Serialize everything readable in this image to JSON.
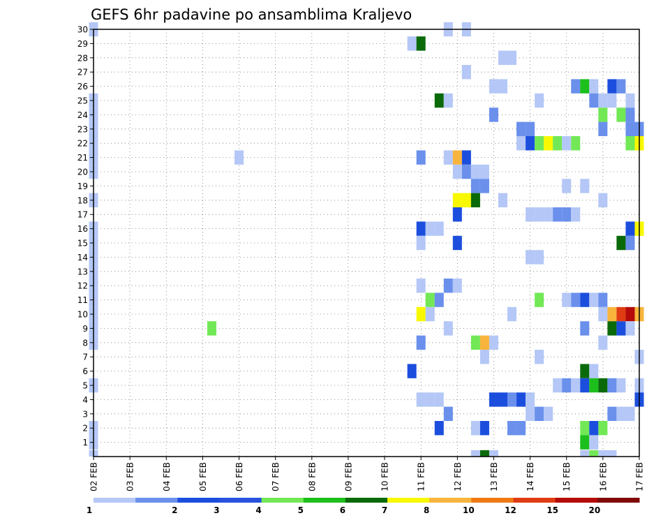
{
  "chart_data": {
    "type": "heatmap",
    "title": "GEFS 6hr padavine po ansamblima Kraljevo",
    "x_tick_labels": [
      "02 FEB",
      "03 FEB",
      "04 FEB",
      "05 FEB",
      "06 FEB",
      "07 FEB",
      "08 FEB",
      "09 FEB",
      "10 FEB",
      "11 FEB",
      "12 FEB",
      "13 FEB",
      "14 FEB",
      "15 FEB",
      "16 FEB",
      "17 FEB"
    ],
    "y_tick_labels": [
      "1",
      "2",
      "3",
      "4",
      "5",
      "6",
      "7",
      "8",
      "9",
      "10",
      "11",
      "12",
      "13",
      "14",
      "15",
      "16",
      "17",
      "18",
      "19",
      "20",
      "21",
      "22",
      "23",
      "24",
      "25",
      "26",
      "27",
      "28",
      "29",
      "30"
    ],
    "x_range_steps": [
      0,
      60
    ],
    "y_range_members": [
      0,
      30
    ],
    "grid": true,
    "legend_position": "bottom",
    "legend_breaks": [
      "1",
      "2",
      "3",
      "4",
      "5",
      "6",
      "7",
      "8",
      "10",
      "12",
      "15",
      "20"
    ],
    "legend_colors": [
      "#b4c7f6",
      "#6a90ec",
      "#1c4ede",
      "#2852de",
      "#72e856",
      "#1cbf1c",
      "#0a6a0a",
      "#f8f800",
      "#f8b43c",
      "#f07814",
      "#e03c14",
      "#b40a0a",
      "#820a0a"
    ],
    "cells": [
      [
        0,
        30,
        1
      ],
      [
        0,
        25,
        1
      ],
      [
        0,
        24,
        1
      ],
      [
        0,
        23,
        1
      ],
      [
        0,
        22,
        1
      ],
      [
        0,
        21,
        1
      ],
      [
        0,
        20,
        1
      ],
      [
        0,
        18,
        1
      ],
      [
        0,
        16,
        1
      ],
      [
        0,
        15,
        1
      ],
      [
        0,
        14,
        1
      ],
      [
        0,
        13,
        1
      ],
      [
        0,
        12,
        1
      ],
      [
        0,
        11,
        1
      ],
      [
        0,
        10,
        1
      ],
      [
        0,
        9,
        1
      ],
      [
        0,
        8,
        1
      ],
      [
        0,
        5,
        1
      ],
      [
        0,
        2,
        1
      ],
      [
        0,
        1,
        1
      ],
      [
        0,
        0,
        1
      ],
      [
        16,
        21,
        1
      ],
      [
        13,
        9,
        5
      ],
      [
        35,
        29,
        1
      ],
      [
        36,
        29,
        7
      ],
      [
        38,
        25,
        7
      ],
      [
        39,
        25,
        1
      ],
      [
        36,
        21,
        2
      ],
      [
        39,
        21,
        1
      ],
      [
        40,
        21,
        10
      ],
      [
        41,
        21,
        3
      ],
      [
        40,
        20,
        1
      ],
      [
        41,
        20,
        2
      ],
      [
        42,
        20,
        1
      ],
      [
        43,
        20,
        1
      ],
      [
        42,
        19,
        2
      ],
      [
        43,
        19,
        2
      ],
      [
        40,
        18,
        8
      ],
      [
        41,
        18,
        9
      ],
      [
        42,
        18,
        7
      ],
      [
        40,
        17,
        3
      ],
      [
        36,
        16,
        3
      ],
      [
        37,
        16,
        1
      ],
      [
        38,
        16,
        1
      ],
      [
        36,
        15,
        1
      ],
      [
        40,
        15,
        3
      ],
      [
        36,
        12,
        1
      ],
      [
        39,
        12,
        2
      ],
      [
        40,
        12,
        1
      ],
      [
        37,
        11,
        5
      ],
      [
        38,
        11,
        2
      ],
      [
        36,
        10,
        8
      ],
      [
        37,
        10,
        1
      ],
      [
        39,
        9,
        1
      ],
      [
        36,
        8,
        2
      ],
      [
        42,
        8,
        5
      ],
      [
        43,
        8,
        10
      ],
      [
        44,
        8,
        1
      ],
      [
        43,
        7,
        1
      ],
      [
        35,
        6,
        3
      ],
      [
        36,
        4,
        1
      ],
      [
        37,
        4,
        1
      ],
      [
        38,
        4,
        1
      ],
      [
        39,
        3,
        2
      ],
      [
        38,
        2,
        3
      ],
      [
        42,
        2,
        1
      ],
      [
        43,
        2,
        3
      ],
      [
        46,
        2,
        2
      ],
      [
        47,
        2,
        2
      ],
      [
        42,
        0,
        1
      ],
      [
        43,
        0,
        7
      ],
      [
        44,
        0,
        1
      ],
      [
        39,
        30,
        1
      ],
      [
        41,
        30,
        1
      ],
      [
        45,
        28,
        1
      ],
      [
        46,
        28,
        1
      ],
      [
        41,
        27,
        1
      ],
      [
        44,
        26,
        1
      ],
      [
        45,
        26,
        1
      ],
      [
        53,
        26,
        2
      ],
      [
        54,
        26,
        6
      ],
      [
        55,
        26,
        1
      ],
      [
        57,
        26,
        3
      ],
      [
        58,
        26,
        2
      ],
      [
        49,
        25,
        1
      ],
      [
        55,
        25,
        2
      ],
      [
        56,
        25,
        1
      ],
      [
        57,
        25,
        1
      ],
      [
        59,
        25,
        1
      ],
      [
        44,
        24,
        2
      ],
      [
        56,
        24,
        5
      ],
      [
        58,
        24,
        5
      ],
      [
        59,
        24,
        2
      ],
      [
        47,
        23,
        2
      ],
      [
        48,
        23,
        2
      ],
      [
        56,
        23,
        2
      ],
      [
        59,
        23,
        2
      ],
      [
        60,
        23,
        2
      ],
      [
        47,
        22,
        1
      ],
      [
        48,
        22,
        3
      ],
      [
        49,
        22,
        5
      ],
      [
        50,
        22,
        8
      ],
      [
        51,
        22,
        5
      ],
      [
        52,
        22,
        1
      ],
      [
        53,
        22,
        5
      ],
      [
        59,
        22,
        5
      ],
      [
        60,
        22,
        9
      ],
      [
        52,
        19,
        1
      ],
      [
        54,
        19,
        1
      ],
      [
        45,
        18,
        1
      ],
      [
        56,
        18,
        1
      ],
      [
        48,
        17,
        1
      ],
      [
        49,
        17,
        1
      ],
      [
        50,
        17,
        1
      ],
      [
        51,
        17,
        2
      ],
      [
        52,
        17,
        2
      ],
      [
        53,
        17,
        1
      ],
      [
        59,
        16,
        3
      ],
      [
        60,
        16,
        8
      ],
      [
        58,
        15,
        7
      ],
      [
        59,
        15,
        2
      ],
      [
        48,
        14,
        1
      ],
      [
        49,
        14,
        1
      ],
      [
        49,
        11,
        5
      ],
      [
        52,
        11,
        1
      ],
      [
        53,
        11,
        2
      ],
      [
        54,
        11,
        3
      ],
      [
        55,
        11,
        1
      ],
      [
        56,
        11,
        2
      ],
      [
        46,
        10,
        1
      ],
      [
        56,
        10,
        1
      ],
      [
        57,
        10,
        10
      ],
      [
        58,
        10,
        15
      ],
      [
        59,
        10,
        20
      ],
      [
        60,
        10,
        10
      ],
      [
        54,
        9,
        2
      ],
      [
        57,
        9,
        7
      ],
      [
        58,
        9,
        3
      ],
      [
        59,
        9,
        1
      ],
      [
        56,
        8,
        1
      ],
      [
        49,
        7,
        1
      ],
      [
        60,
        7,
        1
      ],
      [
        54,
        6,
        7
      ],
      [
        55,
        6,
        1
      ],
      [
        51,
        5,
        1
      ],
      [
        52,
        5,
        2
      ],
      [
        53,
        5,
        1
      ],
      [
        54,
        5,
        3
      ],
      [
        55,
        5,
        6
      ],
      [
        56,
        5,
        7
      ],
      [
        57,
        5,
        2
      ],
      [
        58,
        5,
        1
      ],
      [
        60,
        5,
        1
      ],
      [
        44,
        4,
        3
      ],
      [
        45,
        4,
        3
      ],
      [
        46,
        4,
        2
      ],
      [
        47,
        4,
        3
      ],
      [
        48,
        4,
        1
      ],
      [
        60,
        4,
        3
      ],
      [
        48,
        3,
        1
      ],
      [
        49,
        3,
        2
      ],
      [
        50,
        3,
        1
      ],
      [
        57,
        3,
        2
      ],
      [
        58,
        3,
        1
      ],
      [
        59,
        3,
        1
      ],
      [
        54,
        2,
        5
      ],
      [
        55,
        2,
        3
      ],
      [
        56,
        2,
        5
      ],
      [
        54,
        1,
        6
      ],
      [
        55,
        1,
        1
      ],
      [
        54,
        0,
        1
      ],
      [
        55,
        0,
        5
      ],
      [
        56,
        0,
        1
      ],
      [
        57,
        0,
        1
      ]
    ]
  }
}
